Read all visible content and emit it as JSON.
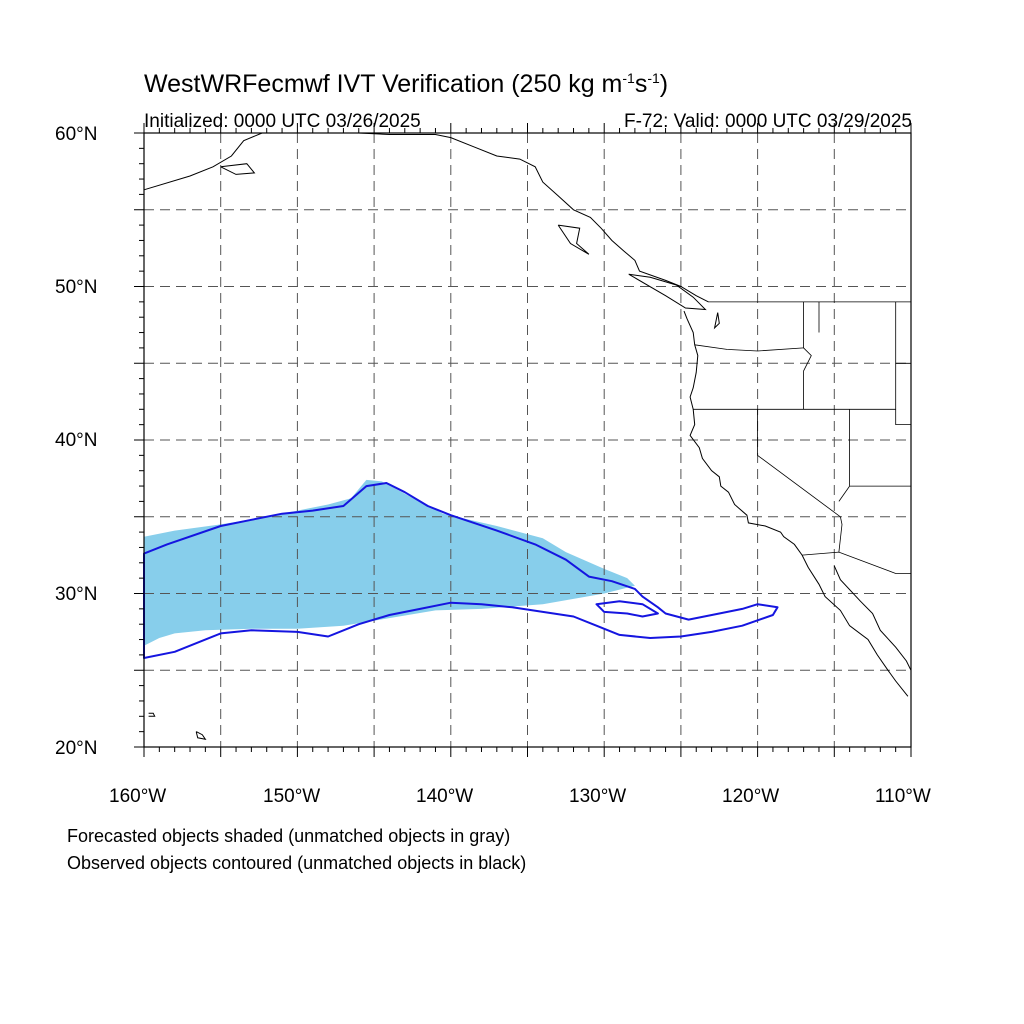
{
  "title": {
    "prefix": "WestWRFecmwf IVT Verification (250 kg m",
    "exp1": "-1",
    "mid": "s",
    "exp2": "-1",
    "suffix": ")"
  },
  "initialized": "Initialized: 0000 UTC 03/26/2025",
  "valid": "F-72: Valid: 0000 UTC 03/29/2025",
  "lat_labels": [
    "60°N",
    "50°N",
    "40°N",
    "30°N",
    "20°N"
  ],
  "lon_labels": [
    "160°W",
    "150°W",
    "140°W",
    "130°W",
    "120°W",
    "110°W"
  ],
  "notes": [
    "Forecasted objects shaded (unmatched objects in gray)",
    "Observed objects contoured (unmatched objects in black)"
  ],
  "map": {
    "lon_range": [
      -160,
      -110
    ],
    "lat_range": [
      20,
      60
    ],
    "grid_lon": [
      -155,
      -150,
      -145,
      -140,
      -135,
      -130,
      -125,
      -120,
      -115
    ],
    "grid_lat": [
      25,
      30,
      35,
      40,
      45,
      50,
      55
    ],
    "forecast_fill_color": "#87ceeb",
    "observed_contour_color": "#1515e0",
    "coastline_color": "#000000",
    "forecast_object": [
      [
        -160,
        33.7
      ],
      [
        -158,
        34.1
      ],
      [
        -155,
        34.5
      ],
      [
        -152,
        35
      ],
      [
        -150,
        35.4
      ],
      [
        -148,
        35.8
      ],
      [
        -146.5,
        36.2
      ],
      [
        -145.5,
        37.4
      ],
      [
        -144.5,
        37.3
      ],
      [
        -143,
        36.5
      ],
      [
        -140.5,
        35.2
      ],
      [
        -137,
        34.4
      ],
      [
        -134,
        33.6
      ],
      [
        -132.5,
        32.7
      ],
      [
        -130,
        31.6
      ],
      [
        -128.5,
        31
      ],
      [
        -128,
        30.5
      ],
      [
        -130,
        30
      ],
      [
        -134,
        29.3
      ],
      [
        -138,
        29
      ],
      [
        -141,
        28.9
      ],
      [
        -144,
        28.4
      ],
      [
        -147,
        27.9
      ],
      [
        -150,
        27.7
      ],
      [
        -153,
        27.7
      ],
      [
        -156,
        27.6
      ],
      [
        -158,
        27.4
      ],
      [
        -159,
        27.1
      ],
      [
        -160,
        26.6
      ]
    ],
    "observed_object_1": [
      [
        -160,
        32.6
      ],
      [
        -158.5,
        33.2
      ],
      [
        -155,
        34.4
      ],
      [
        -153,
        34.8
      ],
      [
        -151,
        35.2
      ],
      [
        -149,
        35.4
      ],
      [
        -147,
        35.7
      ],
      [
        -145.5,
        37
      ],
      [
        -144.2,
        37.2
      ],
      [
        -143,
        36.6
      ],
      [
        -141.5,
        35.7
      ],
      [
        -140,
        35.1
      ],
      [
        -137,
        34.1
      ],
      [
        -134.5,
        33.2
      ],
      [
        -132.5,
        32.2
      ],
      [
        -131,
        31.1
      ],
      [
        -129.5,
        30.8
      ],
      [
        -128,
        30.3
      ],
      [
        -127.5,
        29.8
      ],
      [
        -126.5,
        29.1
      ],
      [
        -126,
        28.7
      ],
      [
        -124.5,
        28.3
      ],
      [
        -122.5,
        28.7
      ],
      [
        -121,
        29
      ],
      [
        -120,
        29.3
      ],
      [
        -118.7,
        29.1
      ],
      [
        -119,
        28.6
      ],
      [
        -121,
        27.9
      ],
      [
        -123,
        27.5
      ],
      [
        -125,
        27.2
      ],
      [
        -127,
        27.1
      ],
      [
        -129,
        27.3
      ],
      [
        -130.5,
        27.9
      ],
      [
        -132,
        28.5
      ],
      [
        -134,
        28.8
      ],
      [
        -136,
        29.1
      ],
      [
        -138,
        29.3
      ],
      [
        -140,
        29.4
      ],
      [
        -142,
        29
      ],
      [
        -144,
        28.6
      ],
      [
        -146,
        28
      ],
      [
        -148,
        27.2
      ],
      [
        -150,
        27.5
      ],
      [
        -153,
        27.6
      ],
      [
        -155,
        27.4
      ],
      [
        -158,
        26.2
      ],
      [
        -160,
        25.8
      ]
    ],
    "observed_object_2": [
      [
        -130.5,
        29.3
      ],
      [
        -129,
        29.5
      ],
      [
        -127.5,
        29.3
      ],
      [
        -126.5,
        28.7
      ],
      [
        -127.5,
        28.5
      ],
      [
        -128.5,
        28.7
      ],
      [
        -130,
        28.8
      ]
    ],
    "coastlines": [
      [
        [
          -160,
          56.3
        ],
        [
          -157,
          57.2
        ],
        [
          -155.5,
          57.8
        ],
        [
          -154.3,
          58.5
        ],
        [
          -153.5,
          59.5
        ],
        [
          -152.3,
          60
        ]
      ],
      [
        [
          -155,
          57.8
        ],
        [
          -153.3,
          58
        ],
        [
          -152.8,
          57.4
        ],
        [
          -154,
          57.3
        ],
        [
          -155,
          57.8
        ]
      ],
      [
        [
          -146,
          60
        ],
        [
          -144,
          59.9
        ],
        [
          -141,
          59.9
        ],
        [
          -140,
          59.7
        ],
        [
          -138.5,
          59.1
        ],
        [
          -137,
          58.5
        ],
        [
          -135.5,
          58.3
        ],
        [
          -134.5,
          57.8
        ],
        [
          -134,
          56.8
        ],
        [
          -133,
          55.9
        ],
        [
          -132,
          55
        ],
        [
          -130.9,
          54.5
        ],
        [
          -130.2,
          53.8
        ],
        [
          -129.5,
          53
        ],
        [
          -128.7,
          52.3
        ],
        [
          -128,
          51.7
        ],
        [
          -127.7,
          51
        ],
        [
          -126,
          50.4
        ],
        [
          -125,
          50
        ],
        [
          -124,
          49.4
        ],
        [
          -123.2,
          49
        ]
      ],
      [
        [
          -133,
          54
        ],
        [
          -131.6,
          53.8
        ],
        [
          -131.8,
          52.8
        ],
        [
          -131,
          52.1
        ],
        [
          -132.2,
          52.8
        ],
        [
          -133,
          54
        ]
      ],
      [
        [
          -128.4,
          50.8
        ],
        [
          -127,
          50.6
        ],
        [
          -125.3,
          50.1
        ],
        [
          -124.2,
          49.3
        ],
        [
          -123.4,
          48.5
        ],
        [
          -124.7,
          48.6
        ],
        [
          -126,
          49.4
        ],
        [
          -128.4,
          50.8
        ]
      ],
      [
        [
          -124.8,
          48.4
        ],
        [
          -124.6,
          47.9
        ],
        [
          -124.2,
          47
        ],
        [
          -124.1,
          46.2
        ],
        [
          -123.9,
          45.5
        ],
        [
          -124,
          44.4
        ],
        [
          -124.2,
          43.4
        ],
        [
          -124.4,
          42.8
        ],
        [
          -124.2,
          42
        ],
        [
          -124.1,
          41
        ],
        [
          -124.4,
          40.3
        ],
        [
          -123.8,
          39.5
        ],
        [
          -123.6,
          38.8
        ],
        [
          -123,
          38
        ],
        [
          -122.5,
          37.6
        ],
        [
          -122.4,
          37
        ],
        [
          -121.9,
          36.6
        ],
        [
          -121.5,
          35.8
        ],
        [
          -120.7,
          35.1
        ],
        [
          -120.6,
          34.6
        ],
        [
          -119.5,
          34.4
        ],
        [
          -118.5,
          34
        ],
        [
          -118.3,
          33.7
        ],
        [
          -117.6,
          33.2
        ],
        [
          -117.1,
          32.5
        ],
        [
          -116.7,
          31.7
        ],
        [
          -116,
          30.6
        ],
        [
          -115.6,
          29.8
        ],
        [
          -114.6,
          28.9
        ],
        [
          -114,
          27.9
        ],
        [
          -112.8,
          27
        ],
        [
          -112.2,
          26
        ],
        [
          -111.5,
          25
        ],
        [
          -111,
          24.3
        ],
        [
          -110.2,
          23.3
        ]
      ],
      [
        [
          -115,
          31.8
        ],
        [
          -114.6,
          30.9
        ],
        [
          -113.3,
          29.5
        ],
        [
          -112.5,
          28.7
        ],
        [
          -112,
          27.6
        ],
        [
          -111,
          26.5
        ],
        [
          -110.3,
          25.6
        ],
        [
          -110,
          25
        ]
      ],
      [
        [
          -122.6,
          48.3
        ],
        [
          -122.5,
          47.6
        ],
        [
          -122.8,
          47.3
        ],
        [
          -122.6,
          48.3
        ]
      ],
      [
        [
          -156.6,
          21
        ],
        [
          -156.2,
          20.8
        ],
        [
          -156,
          20.5
        ],
        [
          -156.5,
          20.6
        ],
        [
          -156.6,
          21
        ]
      ],
      [
        [
          -159.7,
          22.2
        ],
        [
          -159.4,
          22.2
        ],
        [
          -159.3,
          22
        ],
        [
          -159.7,
          22
        ]
      ]
    ],
    "borders": [
      [
        [
          -123.2,
          49
        ],
        [
          -110,
          49
        ]
      ],
      [
        [
          -124.1,
          46.2
        ],
        [
          -122,
          45.9
        ],
        [
          -120,
          45.8
        ],
        [
          -117,
          46
        ]
      ],
      [
        [
          -117,
          49
        ],
        [
          -117,
          46
        ],
        [
          -116.5,
          45.5
        ],
        [
          -117,
          44.5
        ],
        [
          -117,
          42
        ]
      ],
      [
        [
          -124.2,
          42
        ],
        [
          -111,
          42
        ]
      ],
      [
        [
          -120,
          42
        ],
        [
          -120,
          39
        ],
        [
          -114.6,
          35
        ],
        [
          -114.5,
          34.5
        ],
        [
          -114.7,
          32.7
        ]
      ],
      [
        [
          -114,
          42
        ],
        [
          -114,
          37
        ],
        [
          -114.7,
          36
        ]
      ],
      [
        [
          -117.1,
          32.5
        ],
        [
          -114.7,
          32.7
        ],
        [
          -111,
          31.3
        ],
        [
          -110,
          31.3
        ]
      ],
      [
        [
          -111,
          49
        ],
        [
          -111,
          45
        ],
        [
          -110,
          45
        ]
      ],
      [
        [
          -114,
          37
        ],
        [
          -110,
          37
        ]
      ],
      [
        [
          -116,
          49
        ],
        [
          -116,
          47
        ]
      ],
      [
        [
          -110,
          41
        ],
        [
          -111,
          41
        ],
        [
          -111,
          45
        ]
      ]
    ]
  }
}
